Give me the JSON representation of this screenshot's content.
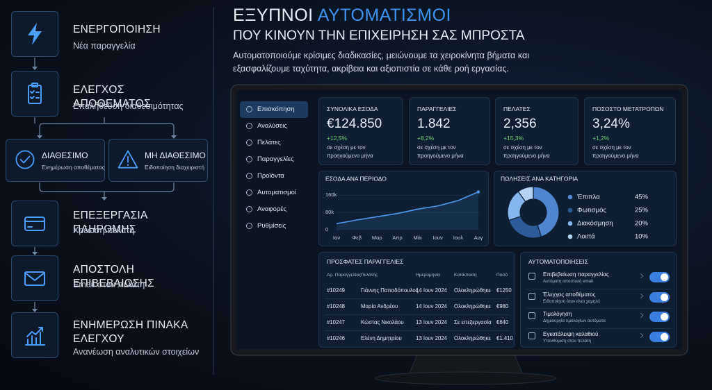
{
  "flow": {
    "steps": [
      {
        "title": "ΕΝΕΡΓΟΠΟΙΗΣΗ",
        "subtitle": "Νέα παραγγελία"
      },
      {
        "title": "ΕΛΕΓΧΟΣ ΑΠΟΘΕΜΑΤΟΣ",
        "subtitle": "Επαλήθευση διαθεσιμότητας"
      },
      {
        "title": "ΕΠΕΞΕΡΓΑΣΙΑ ΠΛΗΡΩΜΗΣ",
        "subtitle": "Χρέωση πελάτη"
      },
      {
        "title": "ΑΠΟΣΤΟΛΗ ΕΠΙΒΕΒΑΙΩΣΗΣ",
        "subtitle": "Email στον πελάτη"
      },
      {
        "title": "ΕΝΗΜΕΡΩΣΗ ΠΙΝΑΚΑ ΕΛΕΓΧΟΥ",
        "subtitle": "Ανανέωση αναλυτικών στοιχείων"
      }
    ],
    "branches": [
      {
        "title": "ΔΙΑΘΕΣΙΜΟ",
        "subtitle": "Ενημέρωση αποθέματος"
      },
      {
        "title": "ΜΗ ΔΙΑΘΕΣΙΜΟ",
        "subtitle": "Ειδοποίηση διαχειριστή"
      }
    ]
  },
  "header": {
    "title_part1": "ΕΞΥΠΝΟΙ",
    "title_part2": "ΑΥΤΟΜΑΤΙΣΜΟΙ",
    "subtitle": "ΠΟΥ ΚΙΝΟΥΝ ΤΗΝ ΕΠΙΧΕΙΡΗΣΗ ΣΑΣ ΜΠΡΟΣΤΑ",
    "description": "Αυτοματοποιούμε κρίσιμες διαδικασίες, μειώνουμε τα χειροκίνητα βήματα και εξασφαλίζουμε ταχύτητα, ακρίβεια και αξιοπιστία σε κάθε ροή εργασίας."
  },
  "dashboard": {
    "nav": [
      "Επισκόπηση",
      "Αναλύσεις",
      "Πελάτες",
      "Παραγγελίες",
      "Προϊόντα",
      "Αυτοματισμοί",
      "Αναφορές",
      "Ρυθμίσεις"
    ],
    "kpis": [
      {
        "label": "ΣΥΝΟΛΙΚΑ ΕΣΟΔΑ",
        "value": "€124.850",
        "change": "+12,5%",
        "note": "σε σχέση με τον προηγούμενο μήνα"
      },
      {
        "label": "ΠΑΡΑΓΓΕΛΙΕΣ",
        "value": "1.842",
        "change": "+8,2%",
        "note": "σε σχέση με τον προηγούμενο μήνα"
      },
      {
        "label": "ΠΕΛΑΤΕΣ",
        "value": "2,356",
        "change": "+15,3%",
        "note": "σε σχέση με τον προηγούμενο μήνα"
      },
      {
        "label": "ΠΟΣΟΣΤΟ ΜΕΤΑΤΡΟΠΩΝ",
        "value": "3,24%",
        "change": "+1,2%",
        "note": "σε σχέση με τον προηγούμενο μήνα"
      }
    ],
    "revenue_chart": {
      "type": "line",
      "title": "ΕΣΟΔΑ ΑΝΑ ΠΕΡΙΟΔΟ",
      "categories": [
        "Ιαν",
        "Φεβ",
        "Μαρ",
        "Απρ",
        "Μάι",
        "Ιουν",
        "Ιουλ",
        "Αυγ"
      ],
      "values": [
        28000,
        45000,
        60000,
        75000,
        95000,
        110000,
        135000,
        175000
      ],
      "ylim": [
        0,
        180000
      ],
      "yticks": [
        0,
        {
          "value": 80000,
          "label": "80k"
        },
        {
          "value": 160000,
          "label": "160k"
        }
      ],
      "color": "#4d9bf0",
      "grid": true
    },
    "sales_chart": {
      "type": "donut",
      "title": "ΠΩΛΗΣΕΙΣ ΑΝΑ ΚΑΤΗΓΟΡΙΑ",
      "categories": [
        "Έπιπλα",
        "Φωτισμός",
        "Διακόσμηση",
        "Λοιπά"
      ],
      "values": [
        45,
        25,
        20,
        10
      ],
      "value_labels": [
        "45%",
        "25%",
        "20%",
        "10%"
      ],
      "colors": [
        "#4f86cf",
        "#2d5a98",
        "#86b6ee",
        "#b4d2f4"
      ]
    },
    "orders": {
      "title": "ΠΡΟΣΦΑΤΕΣ ΠΑΡΑΓΓΕΛΙΕΣ",
      "columns": [
        "Αρ. Παραγγελίας",
        "Πελάτης",
        "Ημερομηνία",
        "Κατάσταση",
        "Ποσό"
      ],
      "rows": [
        [
          "#10249",
          "Γιάννης Παπαδόπουλος",
          "14 Ιουν 2024",
          "Ολοκληρώθηκε",
          "€1250"
        ],
        [
          "#10248",
          "Μαρία Ανδρέου",
          "14 Ιουν 2024",
          "Ολοκληρώθηκε",
          "€980"
        ],
        [
          "#10247",
          "Κώστας Νικολάου",
          "13 Ιουν 2024",
          "Σε επεξεργασία",
          "€640"
        ],
        [
          "#10246",
          "Ελένη Δημητρίου",
          "13 Ιουν 2024",
          "Ολοκληρώθηκε",
          "€1.410"
        ]
      ]
    },
    "automations": {
      "title": "ΑΥΤΟΜΑΤΟΠΟΙΗΣΕΙΣ",
      "items": [
        {
          "title": "Επιβεβαίωση παραγγελίας",
          "subtitle": "Αυτόματη αποστολή email"
        },
        {
          "title": "Έλεγχος αποθέματος",
          "subtitle": "Ειδοποίηση όταν είναι χαμηλό"
        },
        {
          "title": "Τιμολόγηση",
          "subtitle": "Δημιουργία τιμολογίων αυτόματα"
        },
        {
          "title": "Εγκατάλειψη καλαθιού",
          "subtitle": "Υπενθύμιση στον πελάτη"
        }
      ]
    }
  }
}
